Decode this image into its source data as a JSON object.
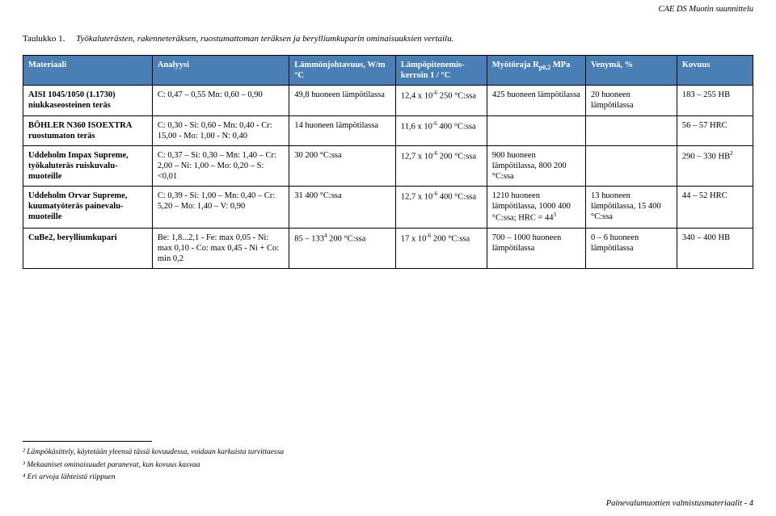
{
  "headerRight": "CAE DS  Muotin suunnittelu",
  "caption": {
    "label": "Taulukko 1.",
    "text": "Työkaluterästen, rakenneteräksen, ruostumattoman teräksen ja berylliumkuparin ominaisuuksien vertailu."
  },
  "table": {
    "columns": [
      {
        "text": "Materiaali"
      },
      {
        "text": "Analyysi"
      },
      {
        "text": "Lämmönjohtavuus, W/m °C"
      },
      {
        "html": "Lämpöpitenemis-kerroin 1 / °C"
      },
      {
        "html": "Myötöraja R<sub>p0,2</sub> MPa"
      },
      {
        "text": "Venymä, %"
      },
      {
        "text": "Kovuus"
      }
    ],
    "rows": [
      [
        {
          "html": "<b>AISI 1045/1050 (1.1730) niukkaseosteinen teräs</b>"
        },
        {
          "text": "C: 0,47 – 0,55  Mn: 0,60 – 0,90"
        },
        {
          "text": "49,8 huoneen lämpötilassa"
        },
        {
          "html": "12,4 x 10<sup>-6</sup> 250 °C:ssa"
        },
        {
          "text": "425 huoneen lämpötilassa"
        },
        {
          "text": "20 huoneen lämpötilassa"
        },
        {
          "text": "183 – 255 HB"
        }
      ],
      [
        {
          "html": "<b>BÖHLER N360 ISOEXTRA ruostumaton teräs</b>"
        },
        {
          "text": "C: 0,30 - Si: 0,60 - Mn: 0,40 - Cr: 15,00 - Mo: 1,00 - N: 0,40"
        },
        {
          "text": "14 huoneen lämpötilassa"
        },
        {
          "html": "11,6 x 10<sup>-6</sup> 400 °C:ssa"
        },
        {
          "text": ""
        },
        {
          "text": ""
        },
        {
          "text": "56 – 57 HRC"
        }
      ],
      [
        {
          "html": "<b>Uddeholm Impax Supreme, työkaluteräs ruiskuvalu-muoteille</b>"
        },
        {
          "text": "C: 0,37 – Si: 0,30 – Mn: 1,40 – Cr: 2,00 – Ni: 1,00 – Mo: 0,20 – S: <0,01"
        },
        {
          "text": "30 200 °C:ssa"
        },
        {
          "html": "12,7 x 10<sup>-6</sup> 200 °C:ssa"
        },
        {
          "text": "900 huoneen lämpötilassa, 800 200 °C:ssa"
        },
        {
          "text": ""
        },
        {
          "html": "290 – 330 HB<sup>2</sup>"
        }
      ],
      [
        {
          "html": "<b>Uddeholm Orvar Supreme, kuumatyöteräs painevalu-muoteille</b>"
        },
        {
          "text": "C: 0,39 - Si: 1,00 – Mn: 0,40 – Cr: 5,20 – Mo: 1,40 – V: 0,90"
        },
        {
          "text": "31 400 °C:ssa"
        },
        {
          "html": "12,7 x 10<sup>-6</sup> 400 °C:ssa"
        },
        {
          "html": "1210 huoneen lämpötilassa, 1000 400 °C:ssa; HRC = 44<sup>3</sup>"
        },
        {
          "text": "13 huoneen lämpötilassa, 15 400 °C:ssa"
        },
        {
          "text": "44 – 52 HRC"
        }
      ],
      [
        {
          "html": "<b>CuBe2, berylliumkupari</b>"
        },
        {
          "text": "Be: 1,8...2,1 - Fe: max 0,05 - Ni: max 0,10 - Co: max 0,45 - Ni + Co: min 0,2"
        },
        {
          "html": "85 – 133<sup>4</sup> 200 °C:ssa"
        },
        {
          "html": "17 x 10<sup>-6</sup> 200 °C:ssa"
        },
        {
          "text": "700 – 1000 huoneen lämpötilassa"
        },
        {
          "text": "0 – 6 huoneen lämpötilassa"
        },
        {
          "text": "340 – 400 HB"
        }
      ]
    ]
  },
  "footnotes": [
    "² Lämpökäsittely, käytetään yleensä tässä kovuudessa, voidaan karkaista tarvittaessa",
    "³ Mekaaniset ominaisuudet paranevat, kun kovuus kasvaa",
    "⁴ Eri arvoja lähteistä riippuen"
  ],
  "footerRight": "Painevalumuottien valmistusmateriaalit - 4"
}
